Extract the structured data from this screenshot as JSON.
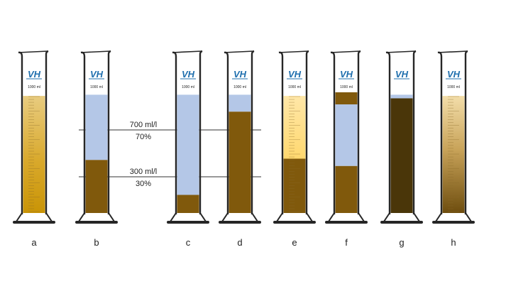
{
  "cylinders": [
    {
      "label": "a",
      "logo": "VH",
      "volume_mark": "1000 ml",
      "layers": [
        {
          "from": 0,
          "to": 97,
          "color": "#d9a92c",
          "shade": "gradient-gold"
        }
      ],
      "graduations": true
    },
    {
      "label": "b",
      "logo": "VH",
      "volume_mark": "1000 ml",
      "layers": [
        {
          "from": 0,
          "to": 44,
          "color": "#80590c"
        },
        {
          "from": 44,
          "to": 98,
          "color": "#b4c7e7"
        }
      ],
      "graduations": false
    },
    {
      "label": "c",
      "logo": "VH",
      "volume_mark": "1000 ml",
      "layers": [
        {
          "from": 0,
          "to": 15,
          "color": "#80590c"
        },
        {
          "from": 15,
          "to": 98,
          "color": "#b4c7e7"
        }
      ],
      "graduations": false
    },
    {
      "label": "d",
      "logo": "VH",
      "volume_mark": "1000 ml",
      "layers": [
        {
          "from": 0,
          "to": 84,
          "color": "#80590c"
        },
        {
          "from": 84,
          "to": 98,
          "color": "#b4c7e7"
        }
      ],
      "graduations": false
    },
    {
      "label": "e",
      "logo": "VH",
      "volume_mark": "1000 ml",
      "layers": [
        {
          "from": 0,
          "to": 45,
          "color": "#80590c"
        },
        {
          "from": 45,
          "to": 97,
          "color": "#ffe08a",
          "shade": "gradient-pale"
        }
      ],
      "graduations": true
    },
    {
      "label": "f",
      "logo": "VH",
      "volume_mark": "1000 ml",
      "layers": [
        {
          "from": 0,
          "to": 39,
          "color": "#80590c"
        },
        {
          "from": 39,
          "to": 90,
          "color": "#b4c7e7"
        },
        {
          "from": 90,
          "to": 100,
          "color": "#80590c"
        }
      ],
      "graduations": false
    },
    {
      "label": "g",
      "logo": "VH",
      "volume_mark": "",
      "layers": [
        {
          "from": 0,
          "to": 95,
          "color": "#4a3609"
        },
        {
          "from": 95,
          "to": 98,
          "color": "#b4c7e7"
        }
      ],
      "graduations": false
    },
    {
      "label": "h",
      "logo": "VH",
      "volume_mark": "1000 ml",
      "layers": [
        {
          "from": 0,
          "to": 97,
          "color": "#a67c2a",
          "shade": "gradient-dark-bottom"
        }
      ],
      "graduations": true
    }
  ],
  "reference_lines": [
    {
      "value_label": "700 ml/l",
      "percent_label": "70%",
      "level": 70
    },
    {
      "value_label": "300 ml/l",
      "percent_label": "30%",
      "level": 30
    }
  ],
  "colors": {
    "outline": "#262626",
    "water": "#b4c7e7",
    "sediment": "#80590c",
    "logo": "#1f6fae"
  }
}
